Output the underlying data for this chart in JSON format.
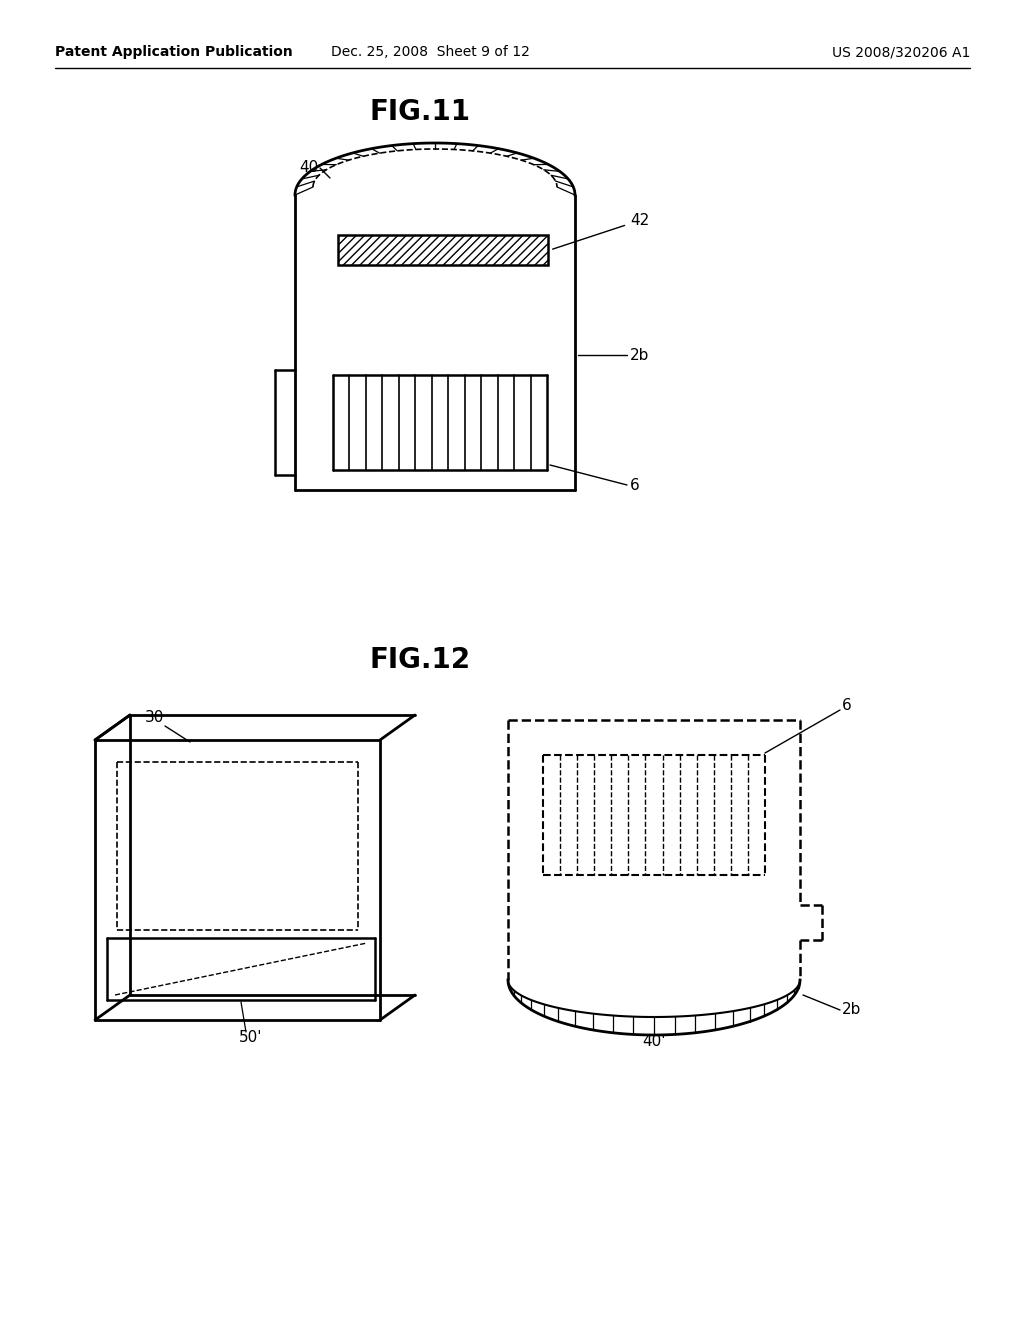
{
  "background_color": "#ffffff",
  "header_left": "Patent Application Publication",
  "header_center": "Dec. 25, 2008  Sheet 9 of 12",
  "header_right": "US 2008/320206 A1",
  "fig11_title": "FIG.11",
  "fig12_title": "FIG.12",
  "line_color": "#000000",
  "label_fontsize": 11,
  "title_fontsize": 18,
  "header_fontsize": 10
}
